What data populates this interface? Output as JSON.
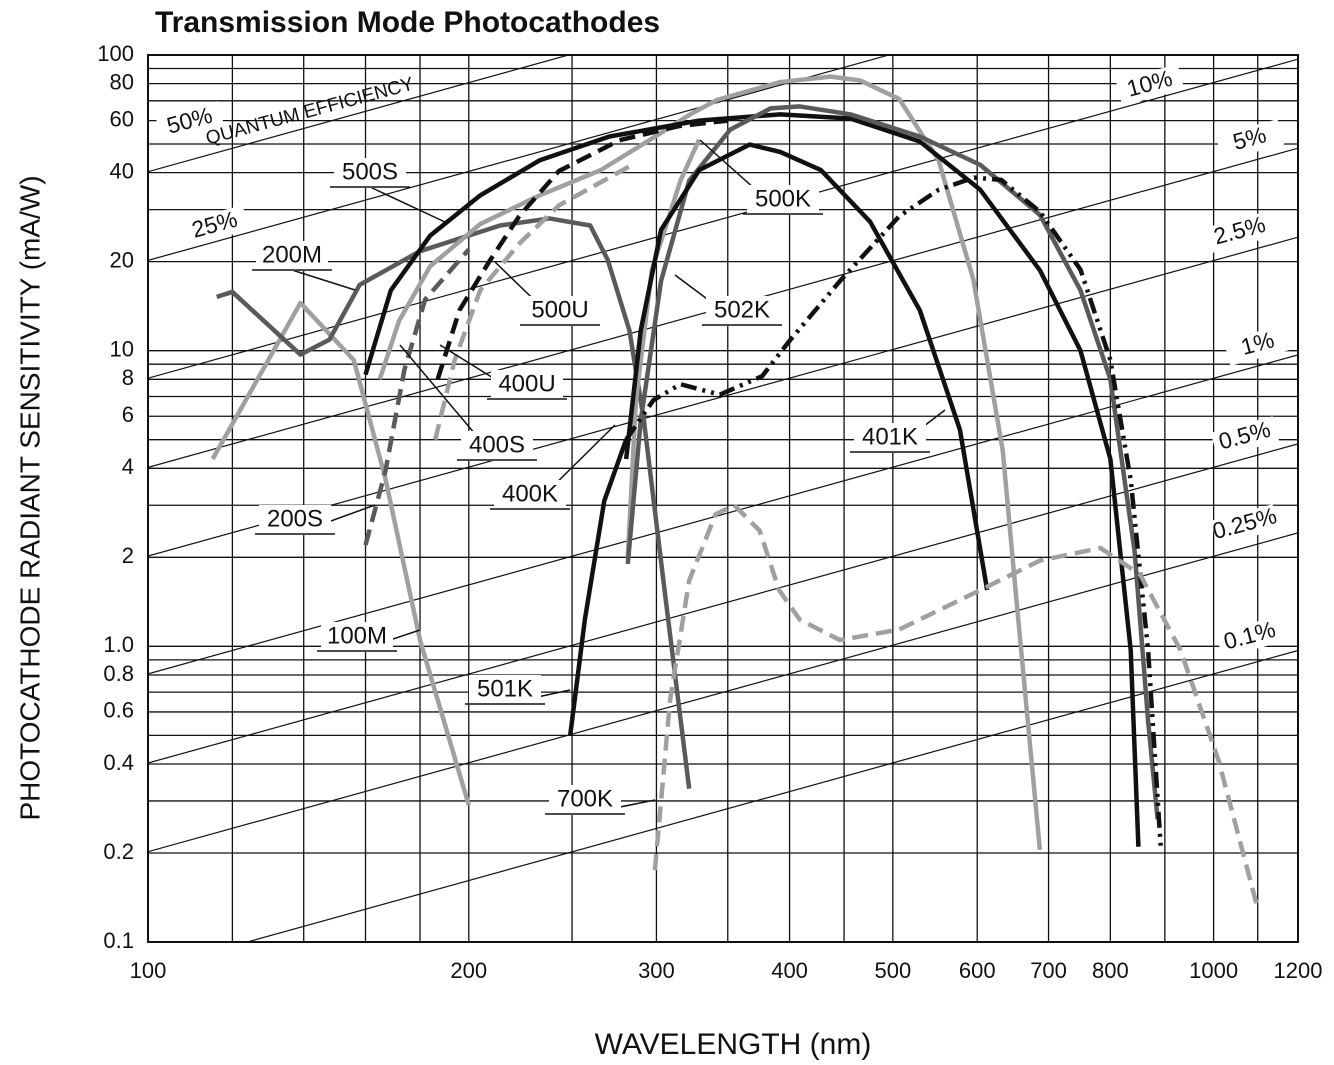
{
  "chart_data": {
    "type": "line",
    "title": "Transmission Mode Photocathodes",
    "xlabel": "WAVELENGTH (nm)",
    "ylabel": "PHOTOCATHODE RADIANT SENSITIVITY (mA/W)",
    "annotation": "QUANTUM EFFICIENCY",
    "xscale": "log",
    "yscale": "log",
    "grid": true,
    "xlim": [
      100,
      1200
    ],
    "ylim": [
      0.1,
      100
    ],
    "xticks": [
      100,
      200,
      300,
      400,
      500,
      600,
      700,
      800,
      1000,
      1200
    ],
    "xminor": [
      120,
      140,
      160,
      180,
      250,
      350,
      450,
      900,
      1100
    ],
    "yticks": [
      0.1,
      0.2,
      0.4,
      0.6,
      0.8,
      {
        "value": 1,
        "label": "1.0"
      },
      2,
      4,
      6,
      8,
      10,
      20,
      40,
      60,
      80,
      100
    ],
    "yminor": [
      0.3,
      0.5,
      0.7,
      0.9,
      3,
      5,
      7,
      9,
      30,
      50,
      70,
      90
    ],
    "qe_lines": [
      {
        "label": "50%",
        "x": [
          100,
          1200
        ],
        "values": [
          40.3,
          484
        ]
      },
      {
        "label": "25%",
        "x": [
          100,
          1200
        ],
        "values": [
          20.2,
          242
        ]
      },
      {
        "label": "10%",
        "x": [
          100,
          1200
        ],
        "values": [
          8.07,
          96.8
        ]
      },
      {
        "label": "5%",
        "x": [
          100,
          1200
        ],
        "values": [
          4.03,
          48.4
        ]
      },
      {
        "label": "2.5%",
        "x": [
          100,
          1200
        ],
        "values": [
          2.02,
          24.2
        ]
      },
      {
        "label": "1%",
        "x": [
          100,
          1200
        ],
        "values": [
          0.807,
          9.68
        ]
      },
      {
        "label": "0.5%",
        "x": [
          100,
          1200
        ],
        "values": [
          0.403,
          4.84
        ]
      },
      {
        "label": "0.25%",
        "x": [
          100,
          1200
        ],
        "values": [
          0.202,
          2.42
        ]
      },
      {
        "label": "0.1%",
        "x": [
          100,
          1200
        ],
        "values": [
          0.0807,
          0.968
        ]
      }
    ],
    "series": [
      {
        "name": "100M",
        "color": "#a0a0a0",
        "style": "solid",
        "x": [
          115,
          139,
          156,
          167,
          180,
          200
        ],
        "values": [
          4.3,
          14.5,
          9.3,
          3.7,
          1.05,
          0.29
        ]
      },
      {
        "name": "200M",
        "color": "#5a5a5a",
        "style": "solid",
        "x": [
          116,
          120,
          139,
          148,
          158,
          180,
          214,
          238,
          260,
          270,
          283,
          292,
          306,
          322
        ],
        "values": [
          15.2,
          15.8,
          9.7,
          10.9,
          16.7,
          21.7,
          26.5,
          28,
          26.5,
          20.3,
          11.7,
          5.8,
          1.45,
          0.33
        ]
      },
      {
        "name": "200S",
        "color": "#5a5a5a",
        "style": "dashed",
        "x": [
          160,
          167,
          174,
          182,
          200
        ],
        "values": [
          2.2,
          3.9,
          8.6,
          14.9,
          22
        ]
      },
      {
        "name": "400S",
        "color": "#a0a0a0",
        "style": "solid",
        "x": [
          165,
          172,
          184,
          205,
          233,
          266,
          296,
          322,
          342,
          392,
          437,
          466,
          507,
          552,
          595,
          634,
          653,
          687
        ],
        "values": [
          8,
          12.6,
          19.3,
          26.8,
          33.5,
          40.8,
          51.7,
          62.7,
          70.5,
          81,
          84.5,
          82,
          71,
          44,
          17.4,
          4.6,
          1.44,
          0.205
        ]
      },
      {
        "name": "400U",
        "color": "#a0a0a0",
        "style": "dashed",
        "x": [
          186,
          194,
          205,
          223,
          243,
          283
        ],
        "values": [
          5,
          9.3,
          16,
          23,
          31,
          42
        ]
      },
      {
        "name": "500S",
        "color": "#111111",
        "style": "solid",
        "x": [
          160,
          169,
          184,
          205,
          233,
          271,
          329,
          392,
          456,
          530,
          604,
          687,
          750,
          800,
          836,
          850
        ],
        "values": [
          8.3,
          16,
          24.5,
          33.5,
          44,
          53,
          60,
          63,
          61,
          51,
          35,
          18.7,
          10,
          4.3,
          0.97,
          0.21
        ]
      },
      {
        "name": "500U",
        "color": "#111111",
        "style": "dashed",
        "x": [
          187,
          196,
          209,
          223,
          243,
          277,
          315,
          350
        ],
        "values": [
          8,
          13.7,
          20,
          28.5,
          40.5,
          51.5,
          57.5,
          60
        ]
      },
      {
        "name": "500K",
        "color": "#a0a0a0",
        "style": "solid",
        "x": [
          282,
          287,
          297,
          316,
          329
        ],
        "values": [
          2,
          6.8,
          18.7,
          37.6,
          51.7
        ]
      },
      {
        "name": "502K",
        "color": "#5a5a5a",
        "style": "solid",
        "x": [
          282,
          290,
          303,
          322,
          352,
          384,
          409,
          456,
          530,
          604,
          687,
          750,
          800,
          843,
          868,
          886
        ],
        "values": [
          1.9,
          5.8,
          17.2,
          37.6,
          56,
          66,
          67,
          63,
          53,
          42.5,
          28.8,
          16,
          8,
          2.1,
          0.56,
          0.26
        ]
      },
      {
        "name": "401K",
        "color": "#111111",
        "style": "solid",
        "x": [
          281,
          290,
          303,
          329,
          367,
          392,
          428,
          476,
          530,
          578,
          613
        ],
        "values": [
          4.3,
          11.7,
          25.6,
          40.8,
          49.8,
          47,
          40.8,
          27.3,
          13.7,
          5.4,
          1.55
        ]
      },
      {
        "name": "400K",
        "color": "#111111",
        "style": "dashdot",
        "x": [
          281,
          298,
          316,
          344,
          377,
          400,
          446,
          507,
          552,
          596,
          632,
          687,
          750,
          800,
          836,
          868,
          892
        ],
        "values": [
          5,
          6.8,
          7.7,
          7.1,
          8.2,
          10.8,
          17.2,
          28.5,
          35,
          38.5,
          37.8,
          29.5,
          18.8,
          9.3,
          3.65,
          0.97,
          0.21
        ]
      },
      {
        "name": "501K",
        "color": "#111111",
        "style": "solid",
        "x": [
          249,
          257,
          268,
          281
        ],
        "values": [
          0.5,
          1.23,
          3.1,
          5
        ]
      },
      {
        "name": "700K",
        "color": "#a0a0a0",
        "style": "dashed",
        "x": [
          299,
          309,
          322,
          341,
          355,
          375,
          391,
          409,
          446,
          507,
          604,
          687,
          783,
          853,
          931,
          1011,
          1098
        ],
        "values": [
          0.175,
          0.66,
          1.67,
          2.8,
          3,
          2.46,
          1.55,
          1.23,
          1.05,
          1.14,
          1.55,
          1.95,
          2.15,
          1.75,
          0.97,
          0.41,
          0.133
        ]
      }
    ]
  }
}
